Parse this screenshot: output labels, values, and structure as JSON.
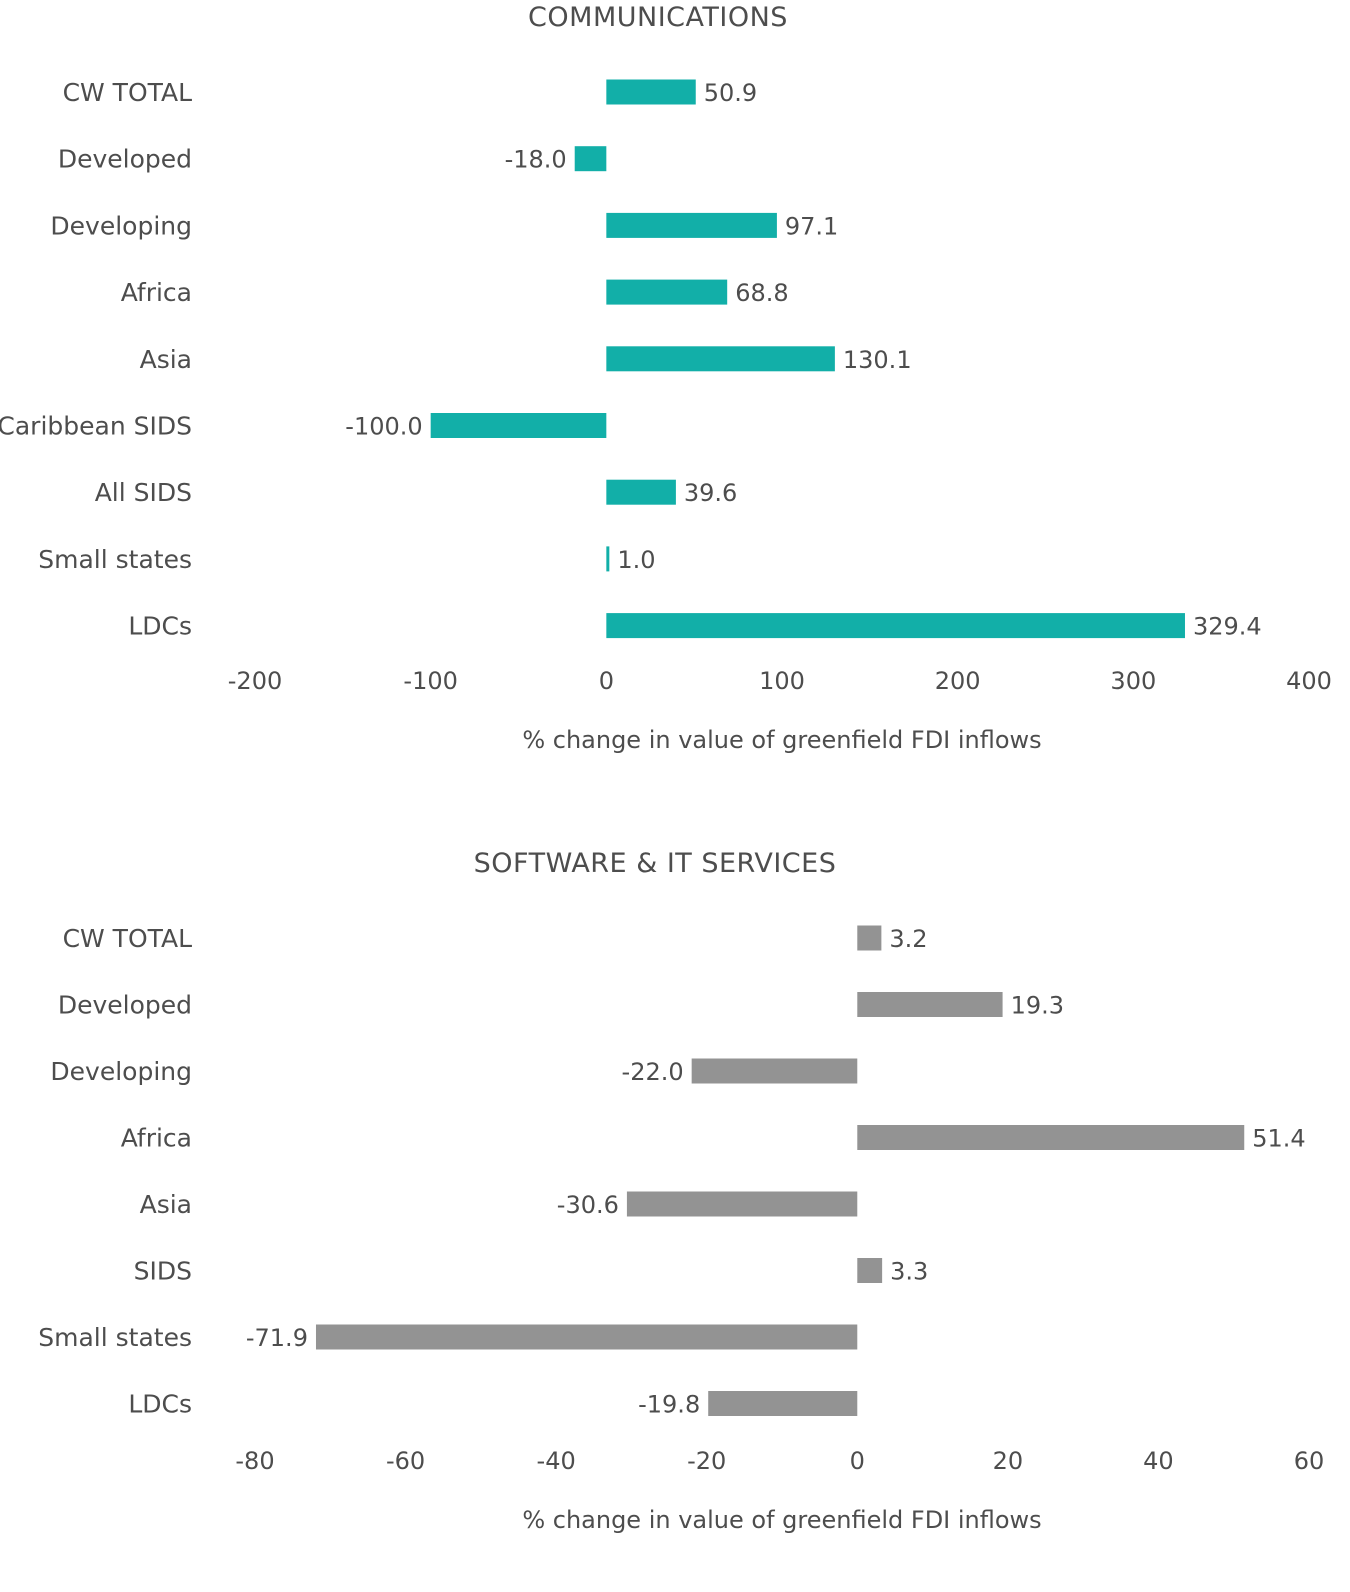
{
  "chart_data": [
    {
      "type": "bar",
      "orientation": "horizontal",
      "title": "COMMUNICATIONS",
      "xlabel": "% change in value of greenfield FDI inflows",
      "categories": [
        "CW TOTAL",
        "Developed",
        "Developing",
        "Africa",
        "Asia",
        "Caribbean SIDS",
        "All SIDS",
        "Small states",
        "LDCs"
      ],
      "values": [
        50.9,
        -18.0,
        97.1,
        68.8,
        130.1,
        -100.0,
        39.6,
        1.0,
        329.4
      ],
      "value_labels": [
        "50.9",
        "-18.0",
        "97.1",
        "68.8",
        "130.1",
        "-100.0",
        "39.6",
        "1.0",
        "329.4"
      ],
      "xlim": [
        -200,
        400
      ],
      "ticks": [
        -200,
        -100,
        0,
        100,
        200,
        300,
        400
      ],
      "tick_labels": [
        "-200",
        "-100",
        "0",
        "100",
        "200",
        "300",
        "400"
      ],
      "grid": false,
      "color": "#12afa8"
    },
    {
      "type": "bar",
      "orientation": "horizontal",
      "title": "SOFTWARE & IT SERVICES",
      "xlabel": "% change in value of greenfield FDI inflows",
      "categories": [
        "CW TOTAL",
        "Developed",
        "Developing",
        "Africa",
        "Asia",
        "SIDS",
        "Small states",
        "LDCs"
      ],
      "values": [
        3.2,
        19.3,
        -22.0,
        51.4,
        -30.6,
        3.3,
        -71.9,
        -19.8
      ],
      "value_labels": [
        "3.2",
        "19.3",
        "-22.0",
        "51.4",
        "-30.6",
        "3.3",
        "-71.9",
        "-19.8"
      ],
      "xlim": [
        -80,
        60
      ],
      "ticks": [
        -80,
        -60,
        -40,
        -20,
        0,
        20,
        40,
        60
      ],
      "tick_labels": [
        "-80",
        "-60",
        "-40",
        "-20",
        "0",
        "20",
        "40",
        "60"
      ],
      "grid": false,
      "color": "#939393"
    }
  ]
}
